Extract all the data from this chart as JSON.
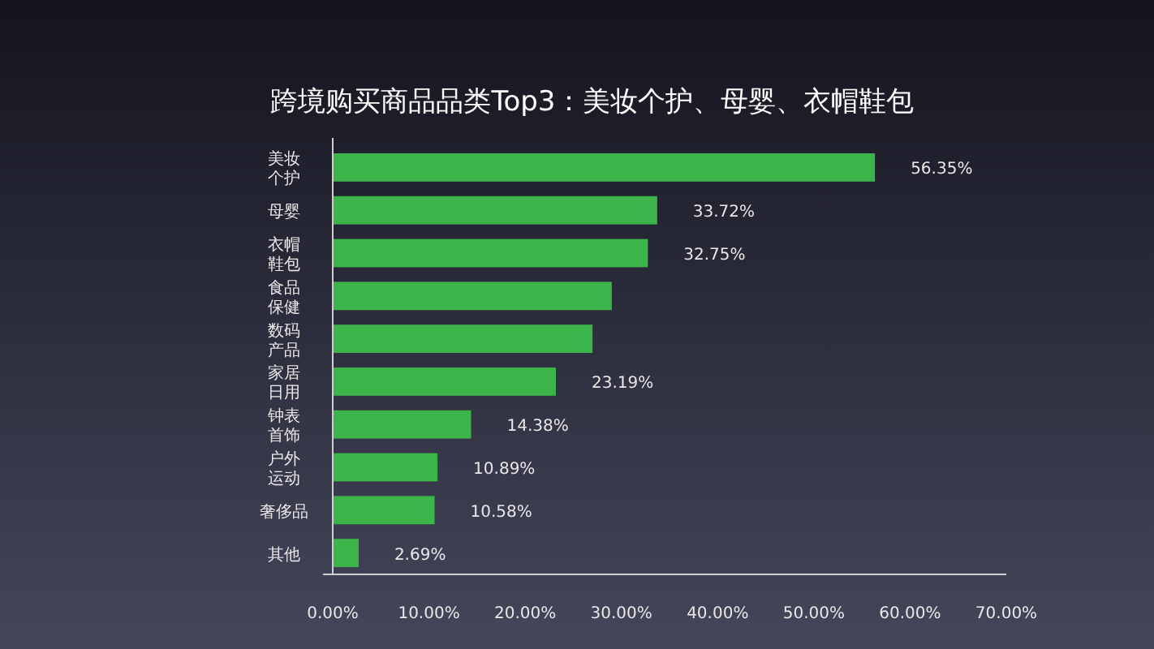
{
  "chart_data": {
    "type": "bar",
    "orientation": "horizontal",
    "title": "跨境购买商品品类Top3：美妆个护、母婴、衣帽鞋包",
    "categories": [
      "美妆个护",
      "母婴",
      "衣帽鞋包",
      "食品保健",
      "数码产品",
      "家居日用",
      "钟表首饰",
      "户外运动",
      "奢侈品",
      "其他"
    ],
    "values": [
      56.35,
      33.72,
      32.75,
      29,
      27,
      23.19,
      14.38,
      10.89,
      10.58,
      2.69
    ],
    "value_labels": [
      "56.35%",
      "33.72%",
      "32.75%",
      null,
      null,
      "23.19%",
      "14.38%",
      "10.89%",
      "10.58%",
      "2.69%"
    ],
    "color": "#3bb54a",
    "xlim": [
      0,
      70
    ],
    "xticks": [
      {
        "value": 0,
        "label": "0.00%"
      },
      {
        "value": 10,
        "label": "10.00%"
      },
      {
        "value": 20,
        "label": "20.00%"
      },
      {
        "value": 30,
        "label": "30.00%"
      },
      {
        "value": 40,
        "label": "40.00%"
      },
      {
        "value": 50,
        "label": "50.00%"
      },
      {
        "value": 60,
        "label": "60.00%"
      },
      {
        "value": 70,
        "label": "70.00%"
      }
    ]
  }
}
